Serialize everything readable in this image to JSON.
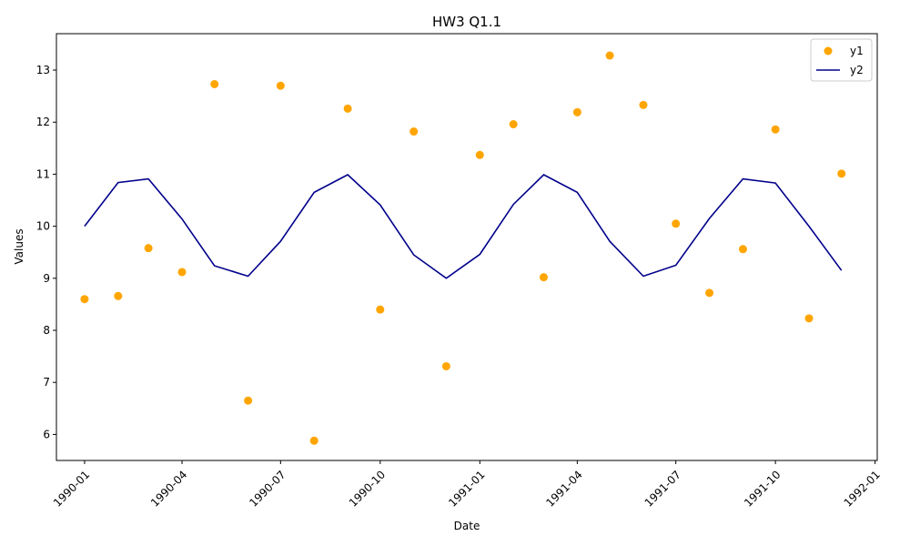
{
  "chart_data": {
    "type": "line",
    "title": "HW3 Q1.1",
    "xlabel": "Date",
    "ylabel": "Values",
    "x_type": "date",
    "x": [
      "1990-01",
      "1990-02",
      "1990-03",
      "1990-04",
      "1990-05",
      "1990-06",
      "1990-07",
      "1990-08",
      "1990-09",
      "1990-10",
      "1990-11",
      "1990-12",
      "1991-01",
      "1991-02",
      "1991-03",
      "1991-04",
      "1991-05",
      "1991-06",
      "1991-07",
      "1991-08",
      "1991-09",
      "1991-10",
      "1991-11",
      "1991-12"
    ],
    "xlim": [
      "1989-12-06",
      "1992-01-03"
    ],
    "ylim": [
      5.5,
      13.7
    ],
    "x_ticks": [
      "1990-01",
      "1990-04",
      "1990-07",
      "1990-10",
      "1991-01",
      "1991-04",
      "1991-07",
      "1991-10",
      "1992-01"
    ],
    "y_ticks": [
      6,
      7,
      8,
      9,
      10,
      11,
      12,
      13
    ],
    "grid": false,
    "legend_position": "top-right",
    "series": [
      {
        "name": "y1",
        "type": "scatter",
        "color": "#ffa500",
        "values": [
          8.6,
          8.66,
          9.58,
          9.12,
          12.73,
          6.65,
          12.7,
          5.88,
          12.26,
          8.4,
          11.82,
          7.31,
          11.37,
          11.96,
          9.02,
          12.19,
          13.28,
          12.33,
          10.05,
          8.72,
          9.56,
          11.86,
          8.23,
          11.01
        ]
      },
      {
        "name": "y2",
        "type": "line",
        "color": "#00008b",
        "values": [
          10.0,
          10.84,
          10.91,
          10.14,
          9.24,
          9.04,
          9.71,
          10.65,
          10.99,
          10.41,
          9.45,
          9.0,
          9.46,
          10.42,
          10.99,
          10.65,
          9.71,
          9.04,
          9.25,
          10.15,
          10.91,
          10.83,
          10.0,
          9.15
        ]
      }
    ]
  }
}
